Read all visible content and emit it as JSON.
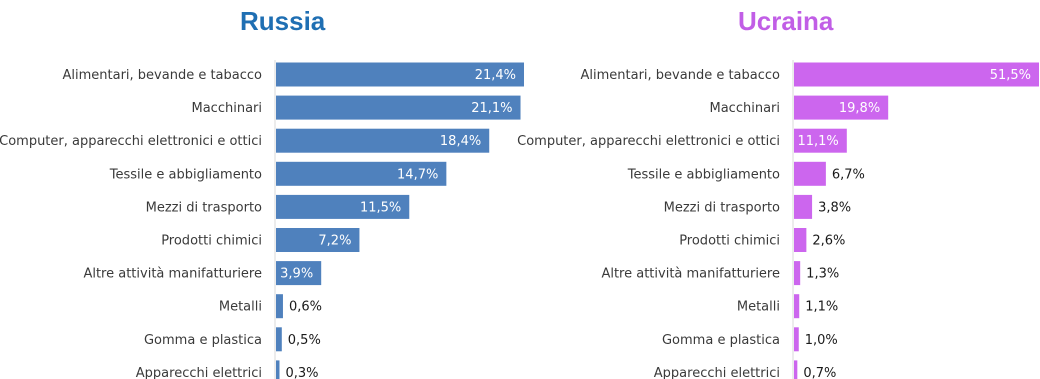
{
  "chart_data": [
    {
      "type": "bar",
      "orientation": "horizontal",
      "title": "Russia",
      "color": "#4f81bd",
      "title_color": "#1f6fb3",
      "categories": [
        "Alimentari, bevande e tabacco",
        "Macchinari",
        "Computer, apparecchi elettronici e ottici",
        "Tessile e abbigliamento",
        "Mezzi di trasporto",
        "Prodotti chimici",
        "Altre attività manifatturiere",
        "Metalli",
        "Gomma e plastica",
        "Apparecchi elettrici"
      ],
      "values": [
        21.4,
        21.1,
        18.4,
        14.7,
        11.5,
        7.2,
        3.9,
        0.6,
        0.5,
        0.3
      ],
      "value_labels": [
        "21,4%",
        "21,1%",
        "18,4%",
        "14,7%",
        "11,5%",
        "7,2%",
        "3,9%",
        "0,6%",
        "0,5%",
        "0,3%"
      ],
      "xlim": [
        0,
        21.4
      ],
      "grid": false,
      "xlabel": "",
      "ylabel": ""
    },
    {
      "type": "bar",
      "orientation": "horizontal",
      "title": "Ucraina",
      "color": "#cc66ee",
      "title_color": "#c15ee6",
      "categories": [
        "Alimentari, bevande e tabacco",
        "Macchinari",
        "Computer, apparecchi elettronici e ottici",
        "Tessile e abbigliamento",
        "Mezzi di trasporto",
        "Prodotti chimici",
        "Altre attività manifatturiere",
        "Metalli",
        "Gomma e plastica",
        "Apparecchi elettrici"
      ],
      "values": [
        51.5,
        19.8,
        11.1,
        6.7,
        3.8,
        2.6,
        1.3,
        1.1,
        1.0,
        0.7
      ],
      "value_labels": [
        "51,5%",
        "19,8%",
        "11,1%",
        "6,7%",
        "3,8%",
        "2,6%",
        "1,3%",
        "1,1%",
        "1,0%",
        "0,7%"
      ],
      "xlim": [
        0,
        51.5
      ],
      "grid": false,
      "xlabel": "",
      "ylabel": ""
    }
  ]
}
